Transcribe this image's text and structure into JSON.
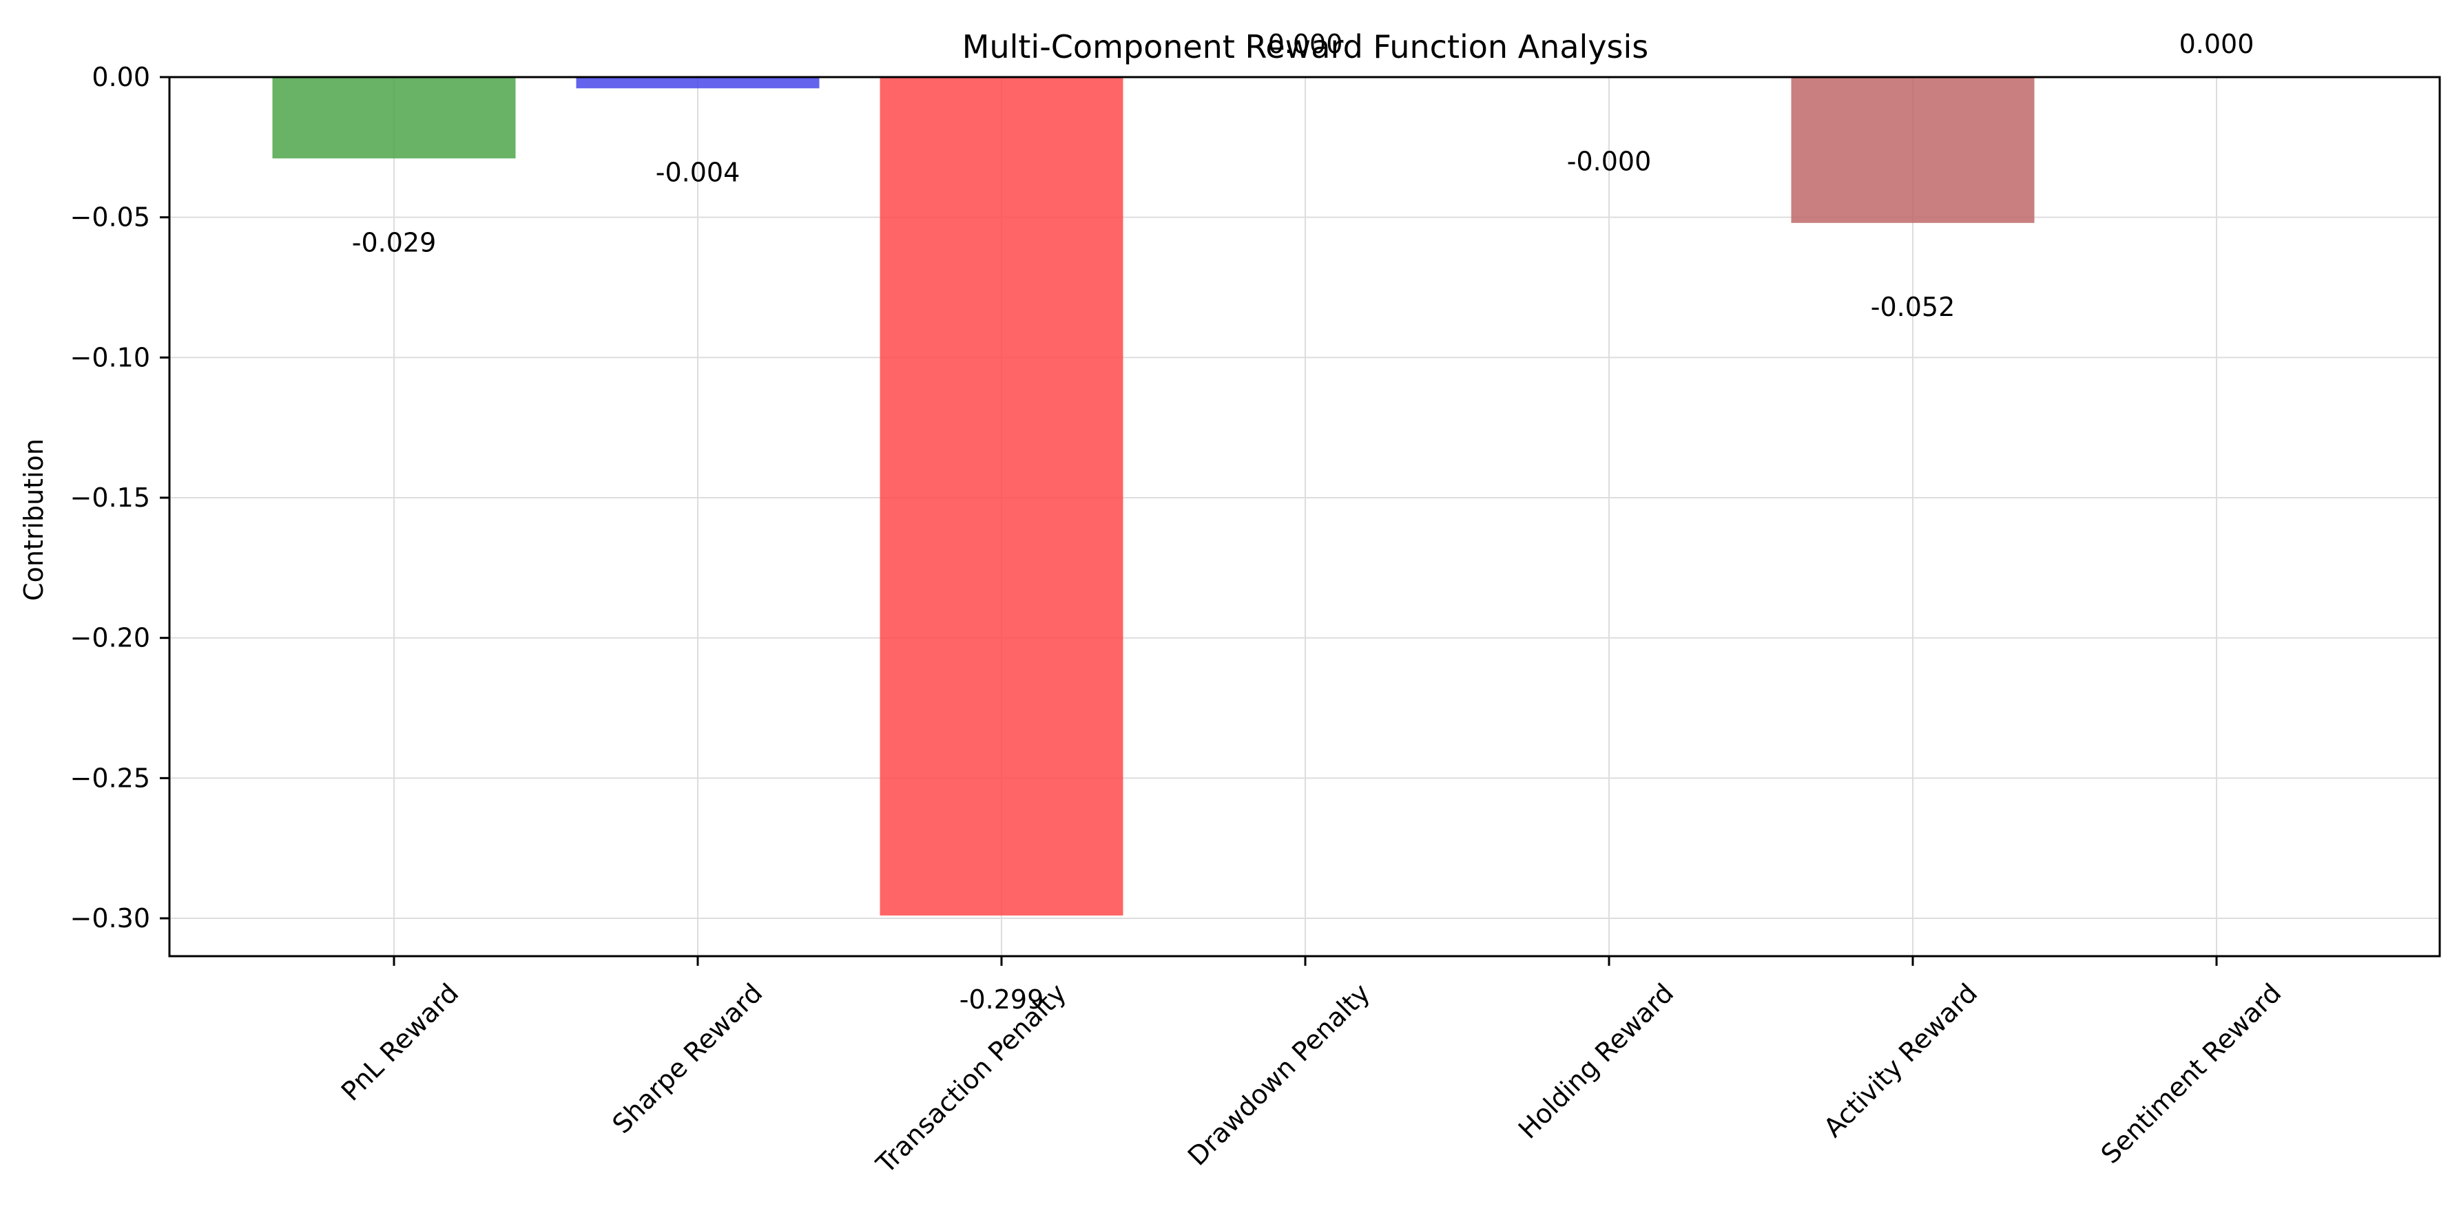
{
  "chart_data": {
    "type": "bar",
    "title": "Multi-Component Reward Function Analysis",
    "xlabel": "",
    "ylabel": "Contribution",
    "categories": [
      "PnL Reward",
      "Sharpe Reward",
      "Transaction Penalty",
      "Drawdown Penalty",
      "Holding Reward",
      "Activity Reward",
      "Sentiment Reward"
    ],
    "values": [
      -0.029,
      -0.004,
      -0.299,
      0.0,
      -0.0001,
      -0.052,
      0.0
    ],
    "value_labels": [
      "-0.029",
      "-0.004",
      "-0.299",
      "0.000",
      "-0.000",
      "-0.052",
      "0.000"
    ],
    "colors": [
      "#4ea64b",
      "#4848ea",
      "#ff4a4b",
      "#ffa54d",
      "#a64ea6",
      "#c06868",
      "#e07ec0"
    ],
    "ylim": [
      -0.3135,
      0.0
    ],
    "yticks": [
      0.0,
      -0.05,
      -0.1,
      -0.15,
      -0.2,
      -0.25,
      -0.3
    ],
    "ytick_labels": [
      "0.00",
      "−0.05",
      "−0.10",
      "−0.15",
      "−0.20",
      "−0.25",
      "−0.30"
    ],
    "grid": true,
    "legend": false
  }
}
